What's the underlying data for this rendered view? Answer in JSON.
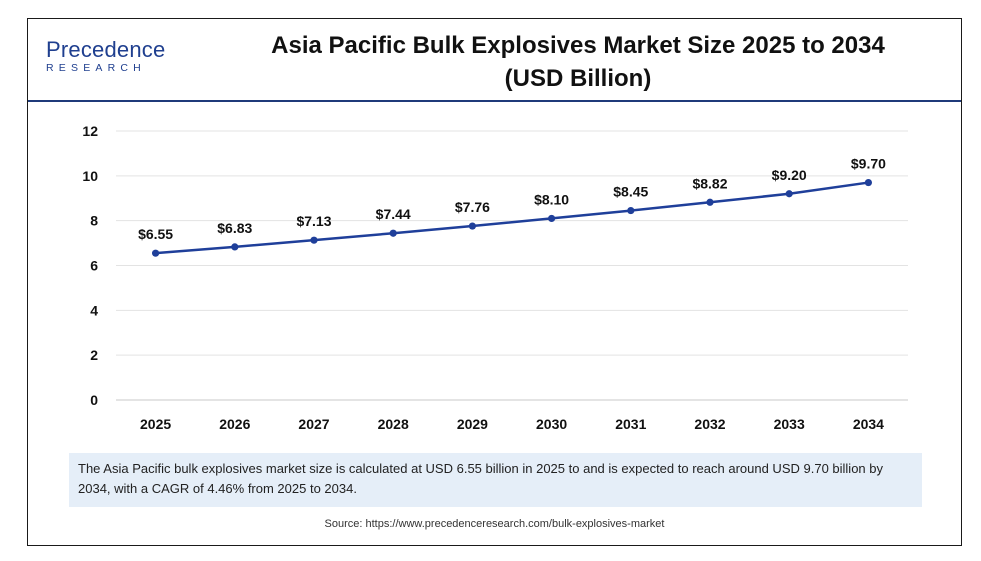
{
  "logo": {
    "main": "Precedence",
    "sub": "RESEARCH"
  },
  "title_line1": "Asia Pacific Bulk Explosives Market Size 2025 to 2034",
  "title_line2": "(USD Billion)",
  "summary": "The Asia Pacific bulk explosives market size is calculated at USD 6.55 billion in 2025 to and is expected to reach around USD 9.70 billion by 2034, with a CAGR of 4.46% from 2025 to 2034.",
  "source": "Source: https://www.precedenceresearch.com/bulk-explosives-market",
  "colors": {
    "line": "#1f3f9a",
    "brand": "#1f3f8f",
    "summary_bg": "#e5eef8"
  },
  "chart_data": {
    "type": "line",
    "title": "Asia Pacific Bulk Explosives Market Size 2025 to 2034 (USD Billion)",
    "xlabel": "",
    "ylabel": "",
    "categories": [
      "2025",
      "2026",
      "2027",
      "2028",
      "2029",
      "2030",
      "2031",
      "2032",
      "2033",
      "2034"
    ],
    "series": [
      {
        "values": [
          6.55,
          6.83,
          7.13,
          7.44,
          7.76,
          8.1,
          8.45,
          8.82,
          9.2,
          9.7
        ]
      }
    ],
    "data_labels": [
      "$6.55",
      "$6.83",
      "$7.13",
      "$7.44",
      "$7.76",
      "$8.10",
      "$8.45",
      "$8.82",
      "$9.20",
      "$9.70"
    ],
    "ylim": [
      0,
      12
    ],
    "yticks": [
      0,
      2,
      4,
      6,
      8,
      10,
      12
    ],
    "grid": true,
    "legend": "none"
  }
}
